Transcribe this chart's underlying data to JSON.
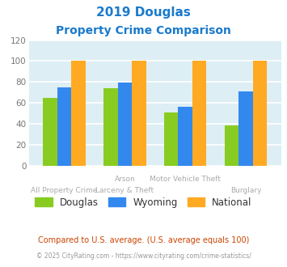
{
  "title_line1": "2019 Douglas",
  "title_line2": "Property Crime Comparison",
  "title_color": "#1a7acc",
  "cat_labels_upper": [
    "",
    "Arson",
    "Motor Vehicle Theft",
    ""
  ],
  "cat_labels_lower": [
    "All Property Crime",
    "Larceny & Theft",
    "",
    "Burglary"
  ],
  "douglas_values": [
    65,
    74,
    51,
    38
  ],
  "wyoming_values": [
    75,
    79,
    56,
    71
  ],
  "national_values": [
    100,
    100,
    100,
    100
  ],
  "douglas_color": "#88cc22",
  "wyoming_color": "#3388ee",
  "national_color": "#ffaa22",
  "ylim": [
    0,
    120
  ],
  "yticks": [
    0,
    20,
    40,
    60,
    80,
    100,
    120
  ],
  "plot_bg_color": "#ddeef5",
  "grid_color": "#ffffff",
  "legend_labels": [
    "Douglas",
    "Wyoming",
    "National"
  ],
  "footnote1": "Compared to U.S. average. (U.S. average equals 100)",
  "footnote2": "© 2025 CityRating.com - https://www.cityrating.com/crime-statistics/",
  "footnote1_color": "#cc4400",
  "footnote2_color": "#999999",
  "label_color": "#aaaaaa"
}
